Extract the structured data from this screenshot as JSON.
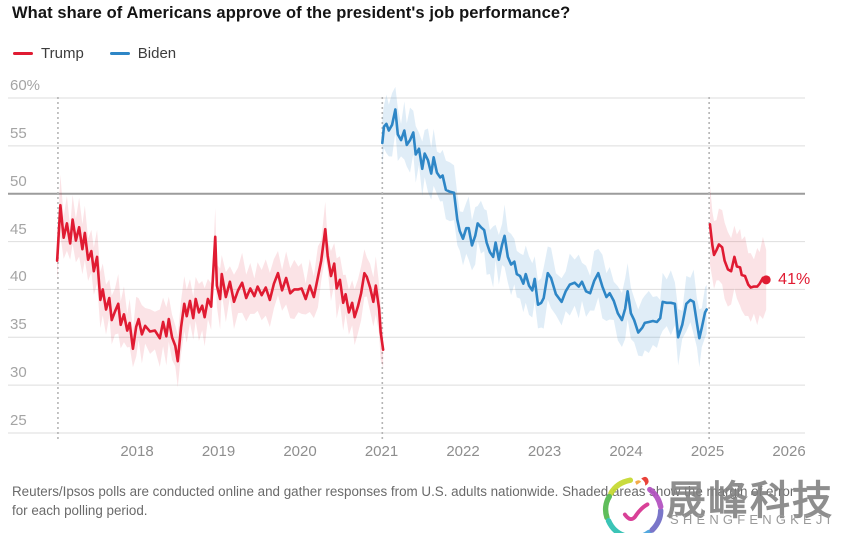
{
  "title": "What share of Americans approve of the president's job performance?",
  "legend": {
    "items": [
      {
        "label": "Trump",
        "color": "#e01b32"
      },
      {
        "label": "Biden",
        "color": "#2e86c6"
      }
    ]
  },
  "footer": {
    "line1": "Reuters/Ipsos polls are conducted online and gather responses from U.S. adults nationwide. Shaded areas show the margin of error",
    "line2": "for each polling period."
  },
  "watermark": {
    "name_cn": "晟峰科技",
    "name_en": "SHENGFENGKEJI"
  },
  "colors": {
    "trump_line": "#e01b32",
    "trump_band": "rgba(224,27,50,0.12)",
    "biden_line": "#2e86c6",
    "biden_band": "rgba(46,134,198,0.15)",
    "gridline": "#dedede",
    "gridline_emphasis": "#9c9c9c",
    "term_boundary": "#b5b5b5"
  },
  "chart_data": {
    "type": "line",
    "title": "What share of Americans approve of the president's job performance?",
    "xlabel": "",
    "ylabel": "",
    "x_ticks": [
      2018,
      2019,
      2020,
      2021,
      2022,
      2023,
      2024,
      2025,
      2026
    ],
    "y_ticks": [
      {
        "value": 60,
        "label": "60%"
      },
      {
        "value": 55,
        "label": "55"
      },
      {
        "value": 50,
        "label": "50"
      },
      {
        "value": 45,
        "label": "45"
      },
      {
        "value": 40,
        "label": "40"
      },
      {
        "value": 35,
        "label": "35"
      },
      {
        "value": 30,
        "label": "30"
      },
      {
        "value": 25,
        "label": "25"
      }
    ],
    "xlim": [
      2016.42,
      2026.2
    ],
    "ylim": [
      23,
      62
    ],
    "grid": "horizontal",
    "legend_position": "top-left",
    "emphasized_gridline": 50,
    "term_boundaries": [
      2017.03,
      2021.01,
      2025.02
    ],
    "end_annotation": {
      "label": "41%",
      "x": 2025.72,
      "value": 41,
      "color": "#e01b32"
    },
    "series": [
      {
        "id": "trump-term1",
        "name": "Trump (first term)",
        "color": "#e01b32",
        "band_color": "rgba(224,27,50,0.12)",
        "moe_base": 1.3,
        "moe_var": 1.9,
        "points": [
          [
            2017.02,
            43.0
          ],
          [
            2017.06,
            48.8
          ],
          [
            2017.1,
            45.4
          ],
          [
            2017.14,
            46.9
          ],
          [
            2017.18,
            44.8
          ],
          [
            2017.21,
            47.3
          ],
          [
            2017.25,
            45.1
          ],
          [
            2017.29,
            46.5
          ],
          [
            2017.33,
            44.2
          ],
          [
            2017.36,
            45.9
          ],
          [
            2017.4,
            43.1
          ],
          [
            2017.44,
            44.0
          ],
          [
            2017.47,
            41.9
          ],
          [
            2017.51,
            43.4
          ],
          [
            2017.55,
            38.9
          ],
          [
            2017.58,
            40.0
          ],
          [
            2017.62,
            37.9
          ],
          [
            2017.66,
            39.1
          ],
          [
            2017.69,
            36.8
          ],
          [
            2017.73,
            37.7
          ],
          [
            2017.77,
            38.5
          ],
          [
            2017.8,
            36.3
          ],
          [
            2017.84,
            37.4
          ],
          [
            2017.88,
            35.7
          ],
          [
            2017.91,
            36.5
          ],
          [
            2017.95,
            33.8
          ],
          [
            2017.99,
            36.1
          ],
          [
            2018.02,
            36.9
          ],
          [
            2018.06,
            35.3
          ],
          [
            2018.1,
            36.2
          ],
          [
            2018.16,
            35.6
          ],
          [
            2018.22,
            35.7
          ],
          [
            2018.28,
            34.9
          ],
          [
            2018.32,
            36.6
          ],
          [
            2018.36,
            35.1
          ],
          [
            2018.39,
            36.9
          ],
          [
            2018.43,
            35.0
          ],
          [
            2018.47,
            34.1
          ],
          [
            2018.5,
            32.5
          ],
          [
            2018.54,
            36.0
          ],
          [
            2018.58,
            38.5
          ],
          [
            2018.61,
            37.2
          ],
          [
            2018.65,
            38.8
          ],
          [
            2018.69,
            37.0
          ],
          [
            2018.72,
            39.0
          ],
          [
            2018.76,
            37.6
          ],
          [
            2018.8,
            38.3
          ],
          [
            2018.83,
            37.1
          ],
          [
            2018.87,
            39.0
          ],
          [
            2018.91,
            38.2
          ],
          [
            2018.93,
            41.0
          ],
          [
            2018.96,
            45.5
          ],
          [
            2018.98,
            40.4
          ],
          [
            2019.02,
            39.0
          ],
          [
            2019.04,
            41.6
          ],
          [
            2019.09,
            39.2
          ],
          [
            2019.14,
            40.8
          ],
          [
            2019.19,
            38.7
          ],
          [
            2019.24,
            39.9
          ],
          [
            2019.29,
            40.7
          ],
          [
            2019.34,
            39.1
          ],
          [
            2019.39,
            40.1
          ],
          [
            2019.44,
            39.3
          ],
          [
            2019.48,
            40.3
          ],
          [
            2019.53,
            39.4
          ],
          [
            2019.58,
            40.2
          ],
          [
            2019.63,
            38.9
          ],
          [
            2019.68,
            40.6
          ],
          [
            2019.73,
            41.7
          ],
          [
            2019.78,
            39.9
          ],
          [
            2019.83,
            41.2
          ],
          [
            2019.88,
            39.6
          ],
          [
            2019.93,
            40.0
          ],
          [
            2019.98,
            40.0
          ],
          [
            2020.02,
            40.1
          ],
          [
            2020.07,
            39.0
          ],
          [
            2020.12,
            40.4
          ],
          [
            2020.17,
            39.2
          ],
          [
            2020.22,
            41.3
          ],
          [
            2020.26,
            43.0
          ],
          [
            2020.31,
            46.3
          ],
          [
            2020.34,
            43.5
          ],
          [
            2020.38,
            41.4
          ],
          [
            2020.42,
            42.7
          ],
          [
            2020.45,
            40.1
          ],
          [
            2020.49,
            41.0
          ],
          [
            2020.53,
            38.6
          ],
          [
            2020.56,
            39.5
          ],
          [
            2020.6,
            37.6
          ],
          [
            2020.64,
            38.6
          ],
          [
            2020.67,
            37.1
          ],
          [
            2020.71,
            38.2
          ],
          [
            2020.75,
            39.6
          ],
          [
            2020.79,
            41.7
          ],
          [
            2020.82,
            41.3
          ],
          [
            2020.86,
            40.2
          ],
          [
            2020.9,
            38.7
          ],
          [
            2020.93,
            40.4
          ],
          [
            2020.97,
            38.0
          ],
          [
            2020.99,
            35.5
          ],
          [
            2021.02,
            33.7
          ]
        ]
      },
      {
        "id": "biden",
        "name": "Biden",
        "color": "#2e86c6",
        "band_color": "rgba(46,134,198,0.15)",
        "moe_base": 1.4,
        "moe_var": 2.0,
        "points": [
          [
            2021.01,
            55.3
          ],
          [
            2021.03,
            57.0
          ],
          [
            2021.06,
            57.3
          ],
          [
            2021.09,
            56.6
          ],
          [
            2021.13,
            57.2
          ],
          [
            2021.17,
            58.8
          ],
          [
            2021.2,
            56.2
          ],
          [
            2021.24,
            55.6
          ],
          [
            2021.28,
            56.6
          ],
          [
            2021.31,
            55.1
          ],
          [
            2021.35,
            55.6
          ],
          [
            2021.39,
            56.4
          ],
          [
            2021.42,
            54.1
          ],
          [
            2021.46,
            54.7
          ],
          [
            2021.5,
            52.6
          ],
          [
            2021.53,
            54.2
          ],
          [
            2021.57,
            53.5
          ],
          [
            2021.61,
            52.1
          ],
          [
            2021.64,
            53.8
          ],
          [
            2021.68,
            52.2
          ],
          [
            2021.72,
            51.7
          ],
          [
            2021.75,
            51.9
          ],
          [
            2021.79,
            50.4
          ],
          [
            2021.84,
            50.2
          ],
          [
            2021.89,
            50.1
          ],
          [
            2021.93,
            47.3
          ],
          [
            2021.96,
            46.1
          ],
          [
            2022.0,
            45.3
          ],
          [
            2022.04,
            46.4
          ],
          [
            2022.07,
            46.4
          ],
          [
            2022.11,
            44.6
          ],
          [
            2022.15,
            45.6
          ],
          [
            2022.18,
            46.9
          ],
          [
            2022.22,
            46.5
          ],
          [
            2022.26,
            46.2
          ],
          [
            2022.29,
            44.9
          ],
          [
            2022.33,
            43.9
          ],
          [
            2022.37,
            43.4
          ],
          [
            2022.4,
            44.9
          ],
          [
            2022.44,
            43.1
          ],
          [
            2022.48,
            44.7
          ],
          [
            2022.51,
            45.6
          ],
          [
            2022.55,
            43.4
          ],
          [
            2022.59,
            42.6
          ],
          [
            2022.63,
            42.9
          ],
          [
            2022.66,
            41.6
          ],
          [
            2022.7,
            41.4
          ],
          [
            2022.74,
            40.6
          ],
          [
            2022.77,
            41.6
          ],
          [
            2022.81,
            40.4
          ],
          [
            2022.85,
            39.9
          ],
          [
            2022.88,
            41.1
          ],
          [
            2022.92,
            38.4
          ],
          [
            2022.96,
            38.6
          ],
          [
            2022.99,
            39.1
          ],
          [
            2023.04,
            41.7
          ],
          [
            2023.08,
            41.2
          ],
          [
            2023.14,
            39.5
          ],
          [
            2023.21,
            38.7
          ],
          [
            2023.26,
            39.8
          ],
          [
            2023.31,
            40.5
          ],
          [
            2023.37,
            40.7
          ],
          [
            2023.42,
            40.3
          ],
          [
            2023.46,
            40.8
          ],
          [
            2023.51,
            39.8
          ],
          [
            2023.56,
            39.6
          ],
          [
            2023.61,
            40.9
          ],
          [
            2023.66,
            41.7
          ],
          [
            2023.71,
            40.3
          ],
          [
            2023.76,
            39.2
          ],
          [
            2023.8,
            39.6
          ],
          [
            2023.85,
            38.8
          ],
          [
            2023.9,
            37.5
          ],
          [
            2023.95,
            36.8
          ],
          [
            2023.99,
            38.0
          ],
          [
            2024.02,
            39.8
          ],
          [
            2024.06,
            37.5
          ],
          [
            2024.1,
            36.8
          ],
          [
            2024.15,
            35.5
          ],
          [
            2024.2,
            36.0
          ],
          [
            2024.23,
            36.5
          ],
          [
            2024.28,
            36.6
          ],
          [
            2024.33,
            36.7
          ],
          [
            2024.38,
            36.6
          ],
          [
            2024.42,
            37.0
          ],
          [
            2024.45,
            38.7
          ],
          [
            2024.5,
            38.6
          ],
          [
            2024.55,
            38.6
          ],
          [
            2024.6,
            38.5
          ],
          [
            2024.64,
            35.0
          ],
          [
            2024.69,
            36.3
          ],
          [
            2024.74,
            38.5
          ],
          [
            2024.79,
            38.9
          ],
          [
            2024.83,
            38.7
          ],
          [
            2024.87,
            36.5
          ],
          [
            2024.9,
            34.9
          ],
          [
            2024.93,
            36.0
          ],
          [
            2024.97,
            37.6
          ],
          [
            2024.99,
            37.9
          ]
        ]
      },
      {
        "id": "trump-term2",
        "name": "Trump (second term)",
        "color": "#e01b32",
        "band_color": "rgba(224,27,50,0.12)",
        "moe_base": 2.4,
        "moe_var": 1.9,
        "end_dot": true,
        "points": [
          [
            2025.03,
            46.8
          ],
          [
            2025.06,
            44.6
          ],
          [
            2025.08,
            43.6
          ],
          [
            2025.11,
            44.1
          ],
          [
            2025.14,
            44.7
          ],
          [
            2025.18,
            44.4
          ],
          [
            2025.21,
            43.0
          ],
          [
            2025.25,
            42.1
          ],
          [
            2025.29,
            41.9
          ],
          [
            2025.33,
            43.4
          ],
          [
            2025.36,
            42.4
          ],
          [
            2025.4,
            42.3
          ],
          [
            2025.42,
            41.5
          ],
          [
            2025.46,
            41.4
          ],
          [
            2025.5,
            40.5
          ],
          [
            2025.53,
            40.2
          ],
          [
            2025.57,
            40.3
          ],
          [
            2025.61,
            40.3
          ],
          [
            2025.64,
            40.6
          ],
          [
            2025.68,
            41.2
          ],
          [
            2025.72,
            41.0
          ]
        ]
      }
    ]
  }
}
